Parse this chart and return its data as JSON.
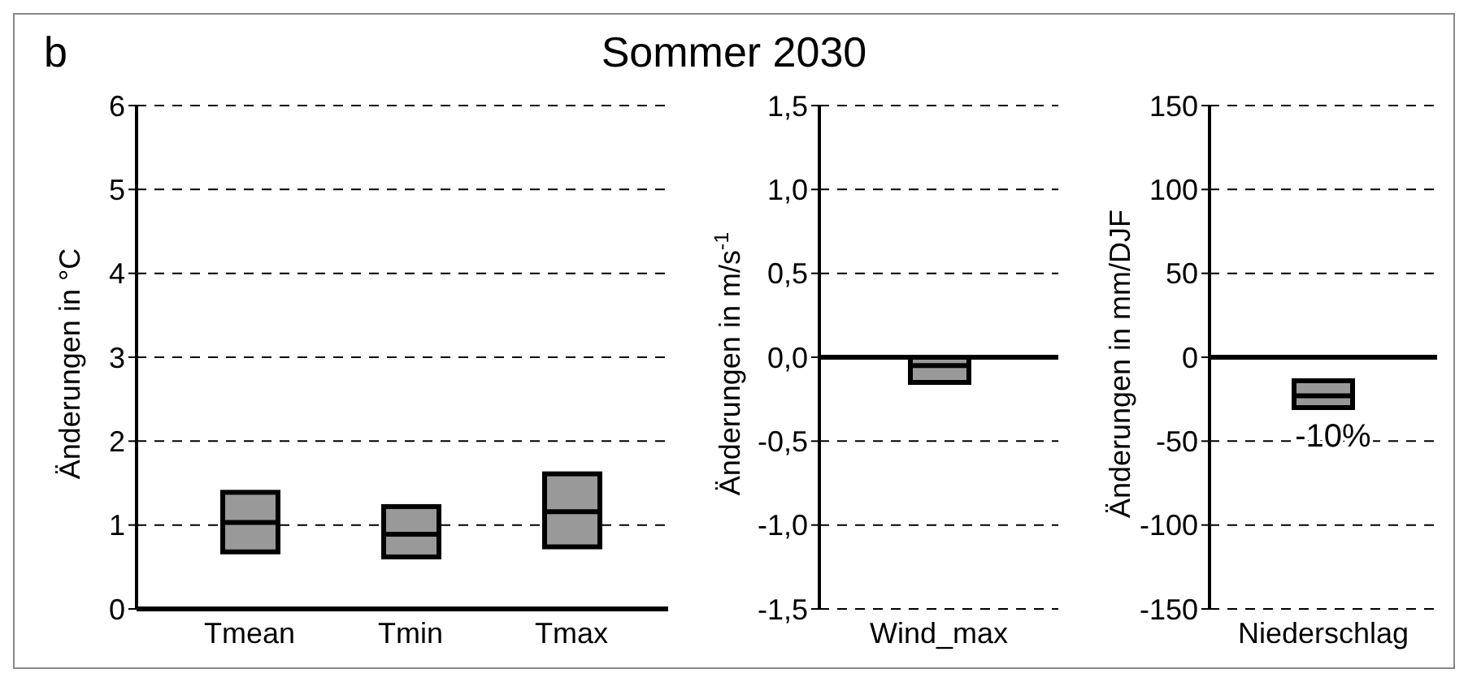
{
  "chart_data": [
    {
      "type": "box",
      "title": "Sommer 2030",
      "annotations": [
        "b"
      ],
      "ylabel": "Änderungen in °C",
      "categories": [
        "Tmean",
        "Tmin",
        "Tmax"
      ],
      "color": "#999999",
      "grid": "y",
      "ylim": [
        0,
        6
      ],
      "yticks": [
        0,
        1,
        2,
        3,
        4,
        5,
        6
      ],
      "boxes": [
        {
          "low": 0.68,
          "q1": 0.68,
          "median": 1.03,
          "q3": 1.39,
          "high": 1.39
        },
        {
          "low": 0.62,
          "q1": 0.62,
          "median": 0.89,
          "q3": 1.22,
          "high": 1.22
        },
        {
          "low": 0.74,
          "q1": 0.74,
          "median": 1.16,
          "q3": 1.61,
          "high": 1.61
        }
      ]
    },
    {
      "type": "box",
      "ylabel": "Änderungen in m/s$^{-1}$",
      "categories": [
        "Wind_max"
      ],
      "color": "#999999",
      "grid": "y",
      "ylim": [
        -1.5,
        1.5
      ],
      "yticks": [
        {
          "value": -1.5,
          "label": "-1,5"
        },
        {
          "value": -1,
          "label": "-1,0"
        },
        {
          "value": -0.5,
          "label": "-0,5"
        },
        {
          "value": 0,
          "label": "0,0"
        },
        {
          "value": 0.5,
          "label": "0,5"
        },
        {
          "value": 1,
          "label": "1,0"
        },
        {
          "value": 1.5,
          "label": "1,5"
        }
      ],
      "boxes": [
        {
          "low": -0.15,
          "q1": -0.15,
          "median": -0.05,
          "q3": 0,
          "high": 0
        }
      ]
    },
    {
      "type": "box",
      "ylabel": "Änderungen in mm/DJF",
      "categories": [
        "Niederschlag"
      ],
      "color": "#999999",
      "grid": "y",
      "ylim": [
        -150,
        150
      ],
      "yticks": [
        -150,
        -100,
        -50,
        0,
        50,
        100,
        150
      ],
      "annotations": [
        "-10%"
      ],
      "boxes": [
        {
          "low": -30,
          "q1": -30,
          "median": -23,
          "q3": -14,
          "high": -14
        }
      ]
    }
  ]
}
